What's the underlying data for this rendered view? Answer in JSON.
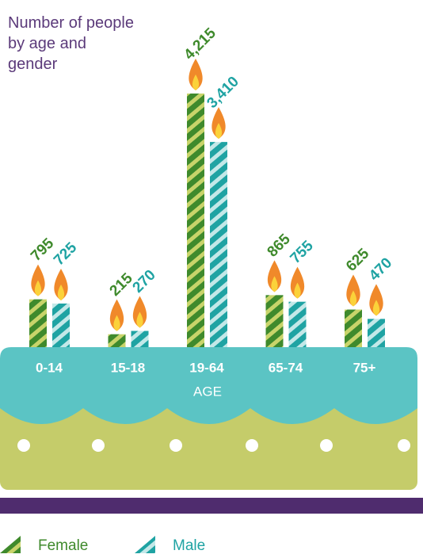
{
  "chart_data": {
    "type": "bar",
    "title": "Number of people by age and gender",
    "x_label": "AGE",
    "categories": [
      "0-14",
      "15-18",
      "19-64",
      "65-74",
      "75+"
    ],
    "series": [
      {
        "name": "Female",
        "color": "#3f8a2c",
        "values": [
          795,
          215,
          4215,
          865,
          625
        ],
        "value_labels": [
          "795",
          "215",
          "4,215",
          "865",
          "625"
        ]
      },
      {
        "name": "Male",
        "color": "#1fa3a3",
        "values": [
          725,
          270,
          3410,
          755,
          470
        ],
        "value_labels": [
          "725",
          "270",
          "3,410",
          "755",
          "470"
        ]
      }
    ]
  }
}
